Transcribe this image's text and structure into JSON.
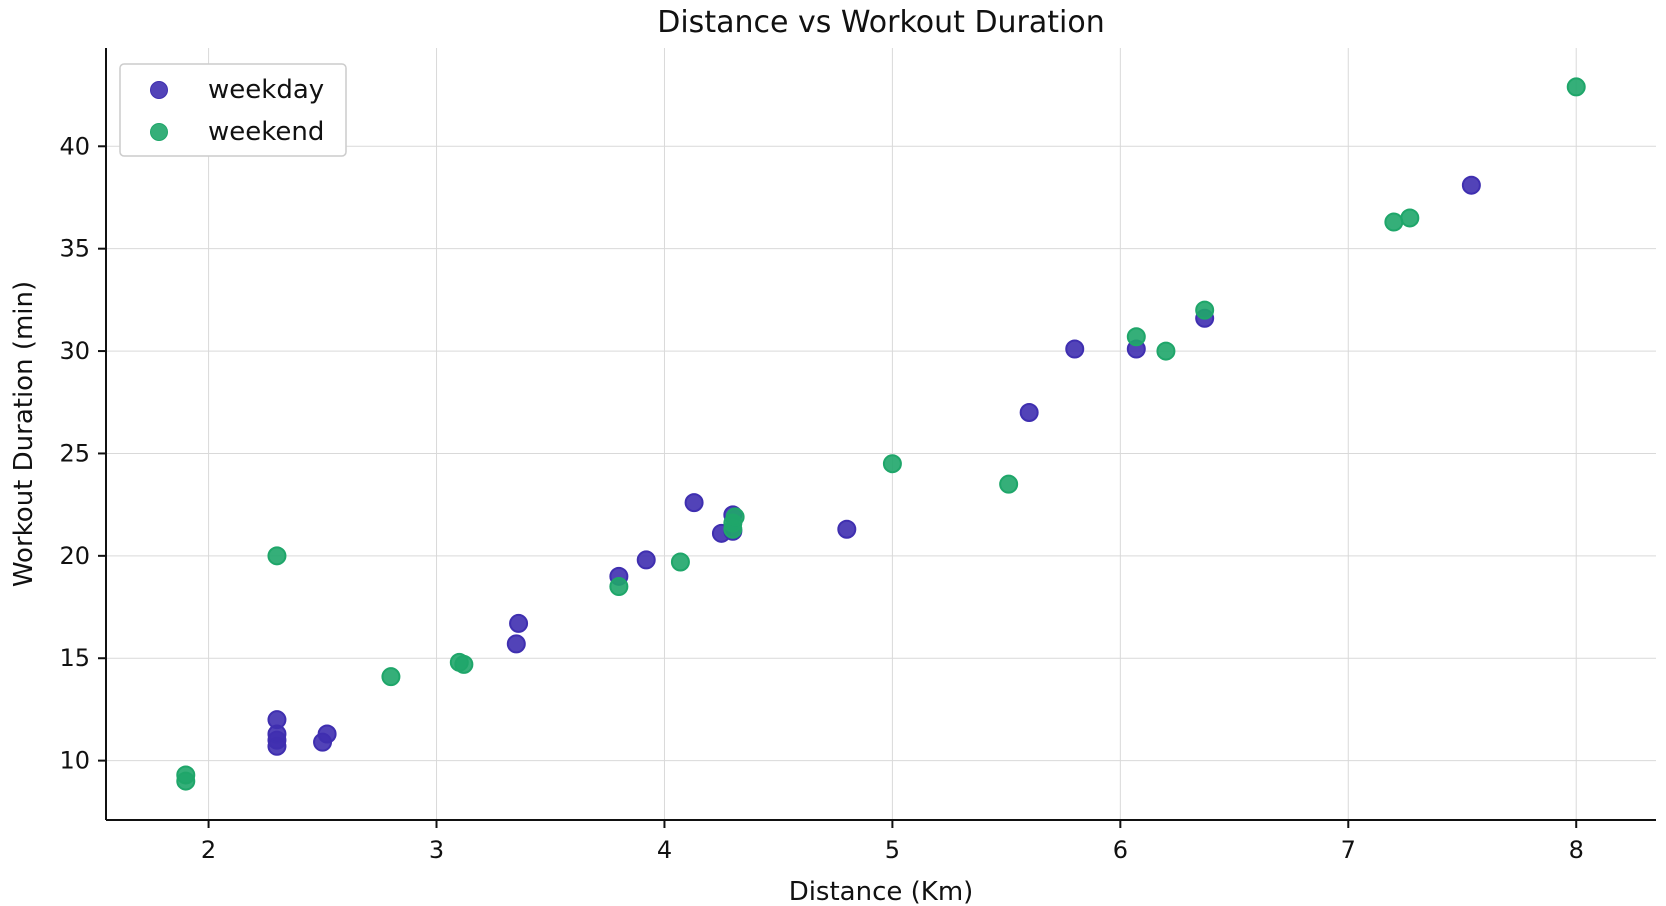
{
  "chart_data": {
    "type": "scatter",
    "title": "Distance vs Workout Duration",
    "xlabel": "Distance (Km)",
    "ylabel": "Workout Duration (min)",
    "xlim": [
      1.55,
      8.35
    ],
    "ylim": [
      7.1,
      44.8
    ],
    "x_ticks": [
      2,
      3,
      4,
      5,
      6,
      7,
      8
    ],
    "y_ticks": [
      10,
      15,
      20,
      25,
      30,
      35,
      40
    ],
    "grid": true,
    "legend": "top-left",
    "series": [
      {
        "name": "weekday",
        "color": "#3f2fb0",
        "points": [
          {
            "x": 2.3,
            "y": 10.7
          },
          {
            "x": 2.3,
            "y": 11.0
          },
          {
            "x": 2.3,
            "y": 11.3
          },
          {
            "x": 2.3,
            "y": 12.0
          },
          {
            "x": 2.5,
            "y": 10.9
          },
          {
            "x": 2.52,
            "y": 11.3
          },
          {
            "x": 3.35,
            "y": 15.7
          },
          {
            "x": 3.36,
            "y": 16.7
          },
          {
            "x": 3.8,
            "y": 19.0
          },
          {
            "x": 3.92,
            "y": 19.8
          },
          {
            "x": 4.13,
            "y": 22.6
          },
          {
            "x": 4.25,
            "y": 21.1
          },
          {
            "x": 4.3,
            "y": 21.2
          },
          {
            "x": 4.3,
            "y": 22.0
          },
          {
            "x": 4.8,
            "y": 21.3
          },
          {
            "x": 5.6,
            "y": 27.0
          },
          {
            "x": 5.8,
            "y": 30.1
          },
          {
            "x": 6.07,
            "y": 30.1
          },
          {
            "x": 6.37,
            "y": 31.6
          },
          {
            "x": 7.54,
            "y": 38.1
          }
        ]
      },
      {
        "name": "weekend",
        "color": "#1fa66a",
        "points": [
          {
            "x": 1.9,
            "y": 9.0
          },
          {
            "x": 1.9,
            "y": 9.3
          },
          {
            "x": 2.3,
            "y": 20.0
          },
          {
            "x": 2.8,
            "y": 14.1
          },
          {
            "x": 3.1,
            "y": 14.8
          },
          {
            "x": 3.12,
            "y": 14.7
          },
          {
            "x": 3.8,
            "y": 18.5
          },
          {
            "x": 4.07,
            "y": 19.7
          },
          {
            "x": 4.3,
            "y": 21.3
          },
          {
            "x": 4.3,
            "y": 21.6
          },
          {
            "x": 4.31,
            "y": 21.9
          },
          {
            "x": 5.0,
            "y": 24.5
          },
          {
            "x": 5.51,
            "y": 23.5
          },
          {
            "x": 6.07,
            "y": 30.7
          },
          {
            "x": 6.2,
            "y": 30.0
          },
          {
            "x": 6.37,
            "y": 32.0
          },
          {
            "x": 7.2,
            "y": 36.3
          },
          {
            "x": 7.27,
            "y": 36.5
          },
          {
            "x": 8.0,
            "y": 42.9
          }
        ]
      }
    ]
  }
}
